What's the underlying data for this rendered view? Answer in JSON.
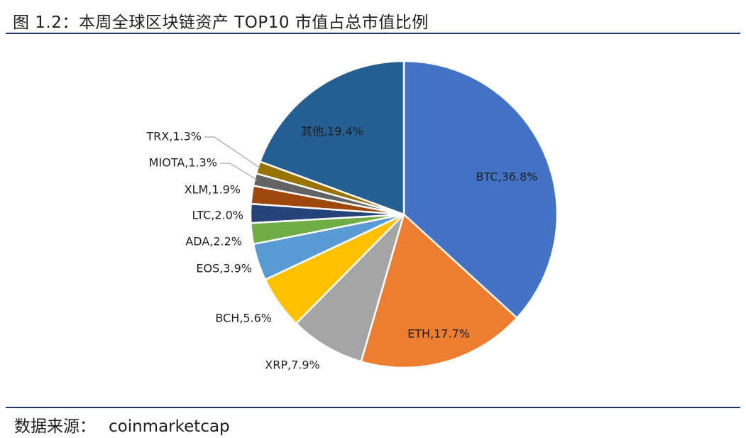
{
  "header": {
    "title": "图 1.2：本周全球区块链资产 TOP10 市值占总市值比例"
  },
  "footer": {
    "source_label": "数据来源：",
    "source_value": "coinmarketcap"
  },
  "chart_data": {
    "type": "pie",
    "title": "",
    "categories": [
      "BTC",
      "ETH",
      "XRP",
      "BCH",
      "EOS",
      "ADA",
      "LTC",
      "XLM",
      "MIOTA",
      "TRX",
      "其他"
    ],
    "values": [
      36.8,
      17.7,
      7.9,
      5.6,
      3.9,
      2.2,
      2.0,
      1.9,
      1.3,
      1.3,
      19.4
    ],
    "labels": [
      "BTC,36.8%",
      "ETH,17.7%",
      "XRP,7.9%",
      "BCH,5.6%",
      "EOS,3.9%",
      "ADA,2.2%",
      "LTC,2.0%",
      "XLM,1.9%",
      "MIOTA,1.3%",
      "TRX,1.3%",
      "其他,19.4%"
    ],
    "colors": [
      "#4472c4",
      "#ed7d31",
      "#a5a5a5",
      "#ffc000",
      "#5b9bd5",
      "#70ad47",
      "#264478",
      "#9e480e",
      "#636363",
      "#997300",
      "#255e91"
    ],
    "start": "12 o'clock",
    "direction": "clockwise",
    "legend": "none"
  }
}
